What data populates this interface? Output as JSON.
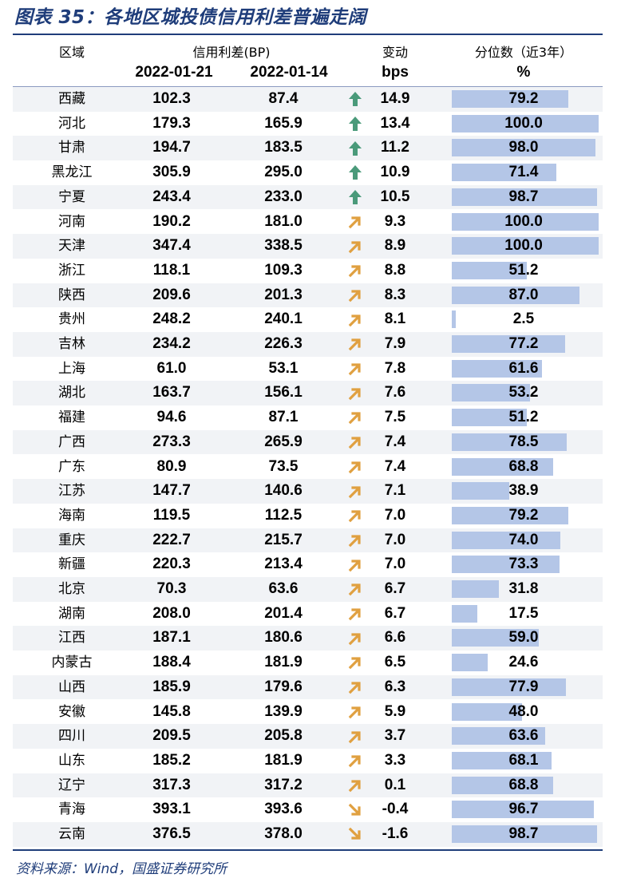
{
  "title": "图表 35：各地区城投债信用利差普遍走阔",
  "headers": {
    "region": "区域",
    "spread": "信用利差(BP)",
    "date1": "2022-01-21",
    "date2": "2022-01-14",
    "change": "变动",
    "change_unit": "bps",
    "percentile": "分位数（近3年）",
    "percentile_unit": "%"
  },
  "colors": {
    "strong_up": "#4a9a7a",
    "up": "#e0a040",
    "down": "#e0a040",
    "bar": "#b4c6e7",
    "accent": "#1f3d7a"
  },
  "rows": [
    {
      "region": "西藏",
      "d1": "102.3",
      "d2": "87.4",
      "change": "14.9",
      "arrow": "strong-up",
      "pct": "79.2"
    },
    {
      "region": "河北",
      "d1": "179.3",
      "d2": "165.9",
      "change": "13.4",
      "arrow": "strong-up",
      "pct": "100.0"
    },
    {
      "region": "甘肃",
      "d1": "194.7",
      "d2": "183.5",
      "change": "11.2",
      "arrow": "strong-up",
      "pct": "98.0"
    },
    {
      "region": "黑龙江",
      "d1": "305.9",
      "d2": "295.0",
      "change": "10.9",
      "arrow": "strong-up",
      "pct": "71.4"
    },
    {
      "region": "宁夏",
      "d1": "243.4",
      "d2": "233.0",
      "change": "10.5",
      "arrow": "strong-up",
      "pct": "98.7"
    },
    {
      "region": "河南",
      "d1": "190.2",
      "d2": "181.0",
      "change": "9.3",
      "arrow": "up",
      "pct": "100.0"
    },
    {
      "region": "天津",
      "d1": "347.4",
      "d2": "338.5",
      "change": "8.9",
      "arrow": "up",
      "pct": "100.0"
    },
    {
      "region": "浙江",
      "d1": "118.1",
      "d2": "109.3",
      "change": "8.8",
      "arrow": "up",
      "pct": "51.2"
    },
    {
      "region": "陕西",
      "d1": "209.6",
      "d2": "201.3",
      "change": "8.3",
      "arrow": "up",
      "pct": "87.0"
    },
    {
      "region": "贵州",
      "d1": "248.2",
      "d2": "240.1",
      "change": "8.1",
      "arrow": "up",
      "pct": "2.5"
    },
    {
      "region": "吉林",
      "d1": "234.2",
      "d2": "226.3",
      "change": "7.9",
      "arrow": "up",
      "pct": "77.2"
    },
    {
      "region": "上海",
      "d1": "61.0",
      "d2": "53.1",
      "change": "7.8",
      "arrow": "up",
      "pct": "61.6"
    },
    {
      "region": "湖北",
      "d1": "163.7",
      "d2": "156.1",
      "change": "7.6",
      "arrow": "up",
      "pct": "53.2"
    },
    {
      "region": "福建",
      "d1": "94.6",
      "d2": "87.1",
      "change": "7.5",
      "arrow": "up",
      "pct": "51.2"
    },
    {
      "region": "广西",
      "d1": "273.3",
      "d2": "265.9",
      "change": "7.4",
      "arrow": "up",
      "pct": "78.5"
    },
    {
      "region": "广东",
      "d1": "80.9",
      "d2": "73.5",
      "change": "7.4",
      "arrow": "up",
      "pct": "68.8"
    },
    {
      "region": "江苏",
      "d1": "147.7",
      "d2": "140.6",
      "change": "7.1",
      "arrow": "up",
      "pct": "38.9"
    },
    {
      "region": "海南",
      "d1": "119.5",
      "d2": "112.5",
      "change": "7.0",
      "arrow": "up",
      "pct": "79.2"
    },
    {
      "region": "重庆",
      "d1": "222.7",
      "d2": "215.7",
      "change": "7.0",
      "arrow": "up",
      "pct": "74.0"
    },
    {
      "region": "新疆",
      "d1": "220.3",
      "d2": "213.4",
      "change": "7.0",
      "arrow": "up",
      "pct": "73.3"
    },
    {
      "region": "北京",
      "d1": "70.3",
      "d2": "63.6",
      "change": "6.7",
      "arrow": "up",
      "pct": "31.8"
    },
    {
      "region": "湖南",
      "d1": "208.0",
      "d2": "201.4",
      "change": "6.7",
      "arrow": "up",
      "pct": "17.5"
    },
    {
      "region": "江西",
      "d1": "187.1",
      "d2": "180.6",
      "change": "6.6",
      "arrow": "up",
      "pct": "59.0"
    },
    {
      "region": "内蒙古",
      "d1": "188.4",
      "d2": "181.9",
      "change": "6.5",
      "arrow": "up",
      "pct": "24.6"
    },
    {
      "region": "山西",
      "d1": "185.9",
      "d2": "179.6",
      "change": "6.3",
      "arrow": "up",
      "pct": "77.9"
    },
    {
      "region": "安徽",
      "d1": "145.8",
      "d2": "139.9",
      "change": "5.9",
      "arrow": "up",
      "pct": "48.0"
    },
    {
      "region": "四川",
      "d1": "209.5",
      "d2": "205.8",
      "change": "3.7",
      "arrow": "up",
      "pct": "63.6"
    },
    {
      "region": "山东",
      "d1": "185.2",
      "d2": "181.9",
      "change": "3.3",
      "arrow": "up",
      "pct": "68.1"
    },
    {
      "region": "辽宁",
      "d1": "317.3",
      "d2": "317.2",
      "change": "0.1",
      "arrow": "up",
      "pct": "68.8"
    },
    {
      "region": "青海",
      "d1": "393.1",
      "d2": "393.6",
      "change": "-0.4",
      "arrow": "down",
      "pct": "96.7"
    },
    {
      "region": "云南",
      "d1": "376.5",
      "d2": "378.0",
      "change": "-1.6",
      "arrow": "down",
      "pct": "98.7"
    }
  ],
  "source": "资料来源：Wind，国盛证券研究所"
}
